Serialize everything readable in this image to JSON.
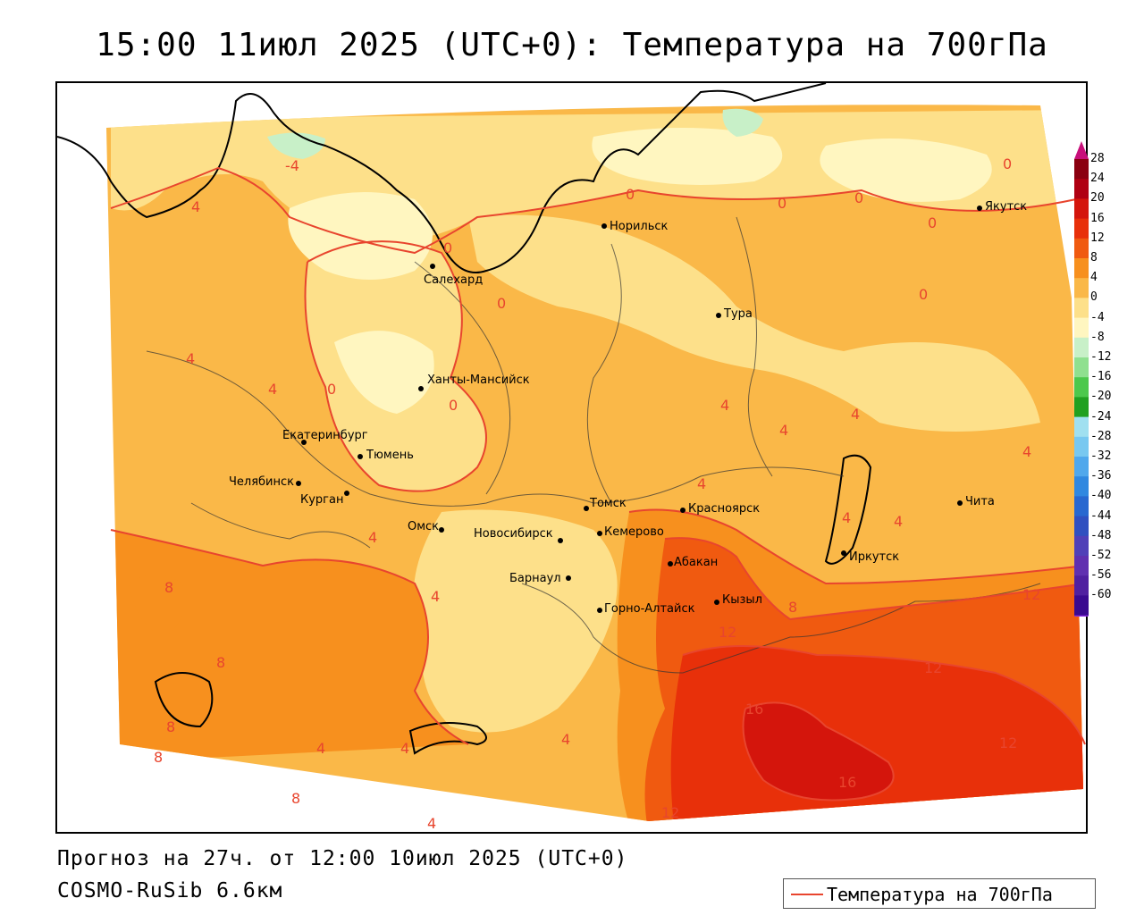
{
  "title": "15:00 11июл 2025 (UTC+0): Температура на 700гПа",
  "forecast_line": "Прогноз на 27ч. от 12:00 10июл 2025 (UTC+0)",
  "model_line": "COSMO-RuSib 6.6км",
  "legend": {
    "label": "Температура на 700гПа",
    "line_color": "#e8452e"
  },
  "colorbar": {
    "ticks": [
      "28",
      "24",
      "20",
      "16",
      "12",
      "8",
      "4",
      "0",
      "-4",
      "-8",
      "-12",
      "-16",
      "-20",
      "-24",
      "-28",
      "-32",
      "-36",
      "-40",
      "-44",
      "-48",
      "-52",
      "-56",
      "-60"
    ],
    "colors": [
      "#8b0010",
      "#b00012",
      "#d4150c",
      "#e8300a",
      "#f05a10",
      "#f7901e",
      "#fab848",
      "#fde08a",
      "#fff6c0",
      "#c8f0c8",
      "#8fe08f",
      "#4cc84c",
      "#20a020",
      "#a0e0f0",
      "#78c8f0",
      "#50a8ec",
      "#3088e0",
      "#2868d0",
      "#3050c0",
      "#5040b8",
      "#6030b0",
      "#5020a0",
      "#3a0a90"
    ]
  },
  "cities": [
    {
      "name": "Норильск"
    },
    {
      "name": "Якутск"
    },
    {
      "name": "Салехард"
    },
    {
      "name": "Тура"
    },
    {
      "name": "Ханты-Мансийск"
    },
    {
      "name": "Екатеринбург"
    },
    {
      "name": "Тюмень"
    },
    {
      "name": "Челябинск"
    },
    {
      "name": "Курган"
    },
    {
      "name": "Омск"
    },
    {
      "name": "Новосибирск"
    },
    {
      "name": "Томск"
    },
    {
      "name": "Кемерово"
    },
    {
      "name": "Красноярск"
    },
    {
      "name": "Барнаул"
    },
    {
      "name": "Абакан"
    },
    {
      "name": "Кызыл"
    },
    {
      "name": "Горно-Алтайск"
    },
    {
      "name": "Иркутск"
    },
    {
      "name": "Чита"
    }
  ],
  "contour_labels": [
    "-4",
    "4",
    "0",
    "0",
    "0",
    "0",
    "0",
    "0",
    "0",
    "0",
    "4",
    "4",
    "0",
    "0",
    "4",
    "4",
    "4",
    "4",
    "4",
    "4",
    "4",
    "4",
    "4",
    "8",
    "8",
    "8",
    "8",
    "8",
    "8",
    "12",
    "12",
    "12",
    "12",
    "16",
    "16",
    "4",
    "4",
    "4",
    "4",
    "12"
  ]
}
